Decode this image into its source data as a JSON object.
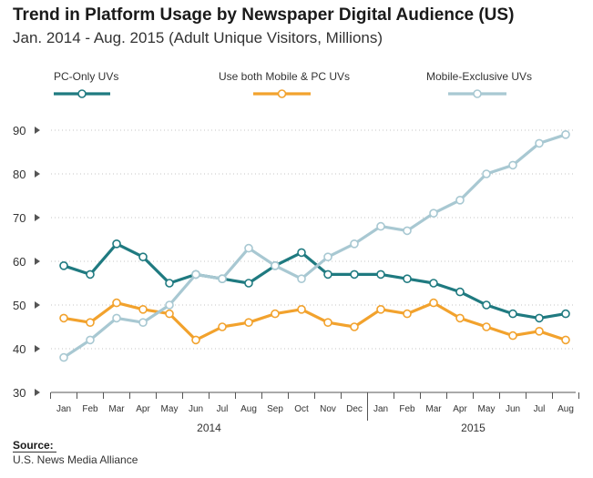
{
  "chart_data": {
    "type": "line",
    "title": "Trend in Platform Usage by Newspaper Digital Audience (US)",
    "subtitle": "Jan. 2014 - Aug. 2015 (Adult Unique Visitors, Millions)",
    "xlabel": "",
    "ylabel": "",
    "ylim": [
      30,
      90
    ],
    "yticks": [
      30,
      40,
      50,
      60,
      70,
      80,
      90
    ],
    "grid": true,
    "legend_position": "top",
    "categories": [
      "Jan",
      "Feb",
      "Mar",
      "Apr",
      "May",
      "Jun",
      "Jul",
      "Aug",
      "Sep",
      "Oct",
      "Nov",
      "Dec",
      "Jan",
      "Feb",
      "Mar",
      "Apr",
      "May",
      "Jun",
      "Jul",
      "Aug"
    ],
    "year_labels": [
      {
        "label": "2014",
        "start_index": 0,
        "end_index": 11
      },
      {
        "label": "2015",
        "start_index": 12,
        "end_index": 19
      }
    ],
    "series": [
      {
        "name": "PC-Only UVs",
        "color": "#1f7a80",
        "values": [
          59,
          57,
          64,
          61,
          55,
          57,
          56,
          55,
          59,
          62,
          57,
          57,
          57,
          56,
          55,
          53,
          50,
          48,
          47,
          48
        ]
      },
      {
        "name": "Use both Mobile & PC UVs",
        "color": "#f2a22d",
        "values": [
          47,
          46,
          50.5,
          49,
          48,
          42,
          45,
          46,
          48,
          49,
          46,
          45,
          49,
          48,
          50.5,
          47,
          45,
          43,
          44,
          42
        ]
      },
      {
        "name": "Mobile-Exclusive UVs",
        "color": "#a8c8d2",
        "values": [
          38,
          42,
          47,
          46,
          50,
          57,
          56,
          63,
          59,
          56,
          61,
          64,
          68,
          67,
          71,
          74,
          80,
          82,
          87,
          89
        ]
      }
    ]
  },
  "source": {
    "label": "Source:",
    "text": "U.S. News Media Alliance"
  }
}
